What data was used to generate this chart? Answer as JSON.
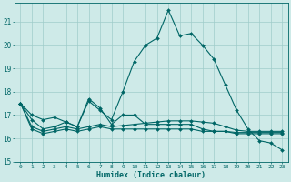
{
  "title": "",
  "xlabel": "Humidex (Indice chaleur)",
  "ylabel": "",
  "xlim": [
    -0.5,
    23.5
  ],
  "ylim": [
    15.0,
    21.8
  ],
  "yticks": [
    15,
    16,
    17,
    18,
    19,
    20,
    21
  ],
  "xticks": [
    0,
    1,
    2,
    3,
    4,
    5,
    6,
    7,
    8,
    9,
    10,
    11,
    12,
    13,
    14,
    15,
    16,
    17,
    18,
    19,
    20,
    21,
    22,
    23
  ],
  "background_color": "#ceeae8",
  "grid_color": "#a0ccca",
  "line_color": "#006666",
  "series1": [
    17.5,
    17.0,
    16.8,
    16.9,
    16.7,
    16.5,
    17.7,
    17.3,
    16.6,
    17.0,
    17.0,
    16.6,
    16.6,
    16.6,
    16.6,
    16.6,
    16.4,
    16.3,
    16.3,
    16.2,
    16.2,
    16.2,
    16.2,
    16.2
  ],
  "series2": [
    17.5,
    16.8,
    16.4,
    16.5,
    16.7,
    16.5,
    17.6,
    17.2,
    16.8,
    18.0,
    19.3,
    20.0,
    20.3,
    21.5,
    20.4,
    20.5,
    20.0,
    19.4,
    18.3,
    17.2,
    16.4,
    15.9,
    15.8,
    15.5
  ],
  "series3": [
    17.5,
    16.5,
    16.3,
    16.4,
    16.5,
    16.4,
    16.5,
    16.6,
    16.5,
    16.55,
    16.6,
    16.65,
    16.7,
    16.75,
    16.75,
    16.75,
    16.7,
    16.65,
    16.5,
    16.35,
    16.3,
    16.3,
    16.3,
    16.3
  ],
  "series4": [
    17.5,
    16.4,
    16.2,
    16.3,
    16.4,
    16.3,
    16.4,
    16.5,
    16.4,
    16.4,
    16.4,
    16.4,
    16.4,
    16.4,
    16.4,
    16.4,
    16.3,
    16.3,
    16.3,
    16.25,
    16.25,
    16.25,
    16.25,
    16.25
  ],
  "markersize": 2.0,
  "linewidth": 0.8
}
